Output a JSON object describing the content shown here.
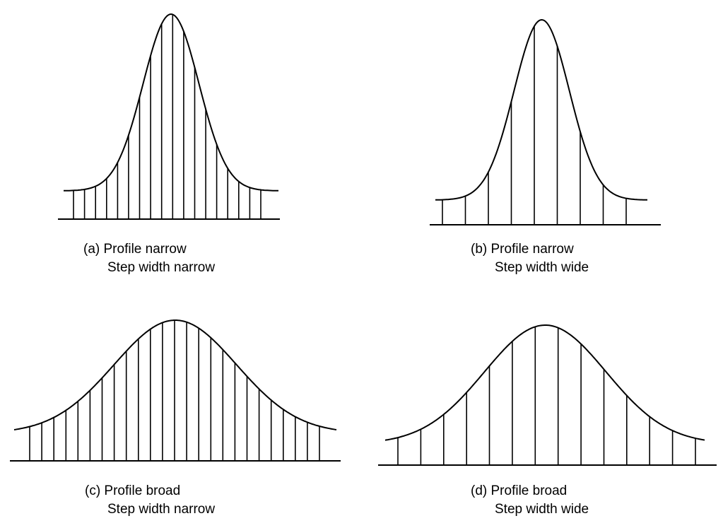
{
  "panels": [
    {
      "id": "a",
      "caption": [
        "(a) Profile narrow",
        "Step width narrow"
      ],
      "profile": "narrow",
      "step_width": "narrow"
    },
    {
      "id": "b",
      "caption": [
        "(b) Profile narrow",
        "Step width wide"
      ],
      "profile": "narrow",
      "step_width": "wide"
    },
    {
      "id": "c",
      "caption": [
        "(c) Profile broad",
        "Step width narrow"
      ],
      "profile": "broad",
      "step_width": "narrow"
    },
    {
      "id": "d",
      "caption": [
        "(d) Profile broad",
        "Step width wide"
      ],
      "profile": "broad",
      "step_width": "wide"
    }
  ],
  "colors": {
    "ink": "#000000",
    "background": "#ffffff"
  }
}
